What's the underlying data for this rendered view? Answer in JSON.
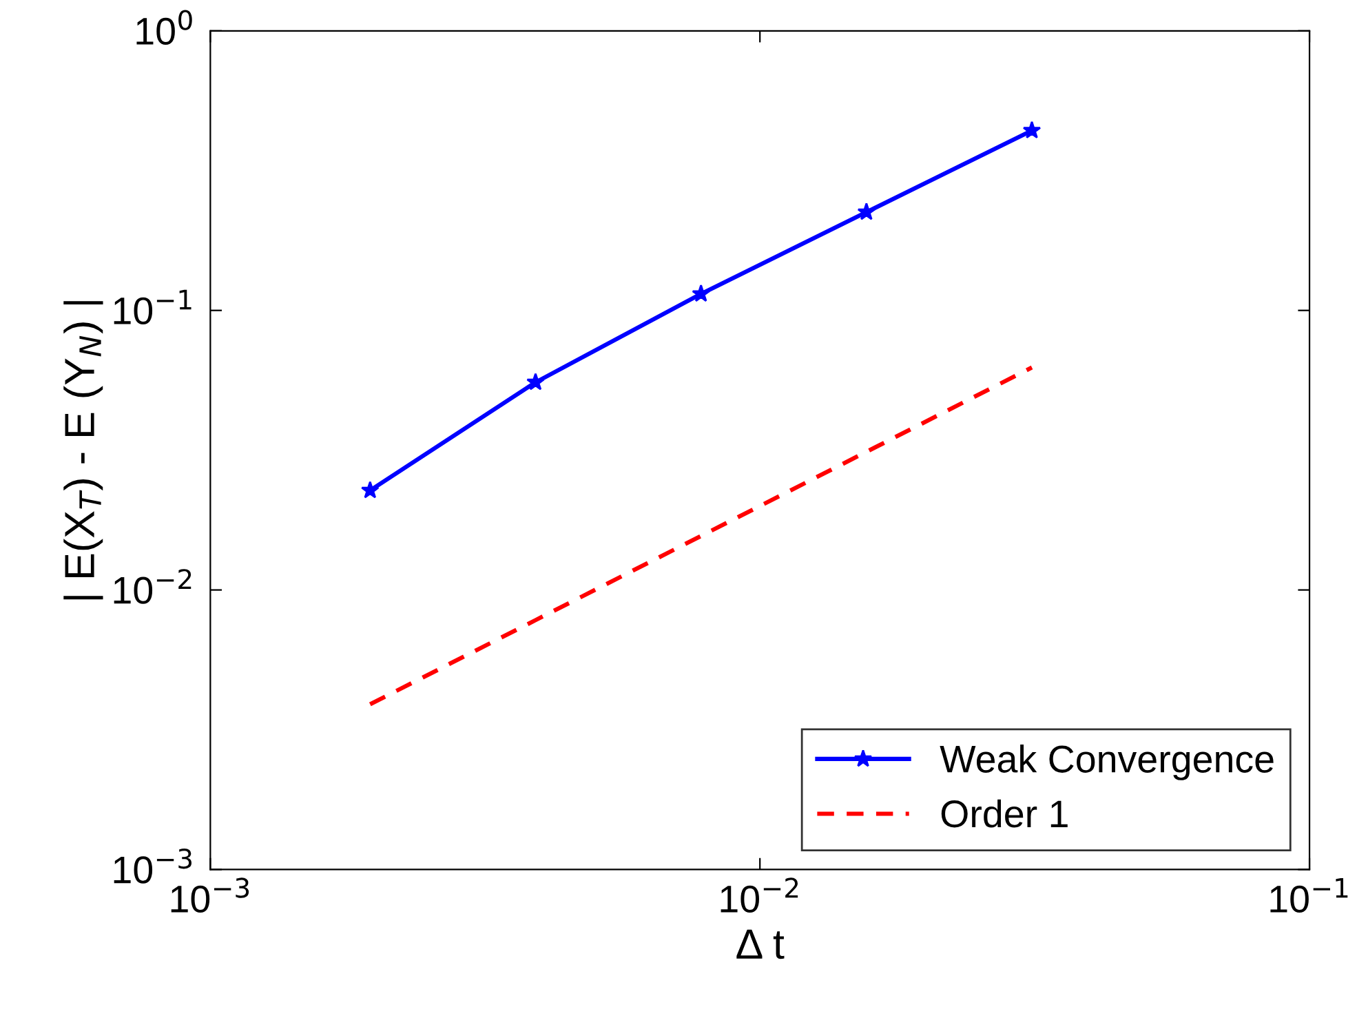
{
  "chart_data": {
    "type": "line",
    "xlabel": "Δ t",
    "ylabel": "| E(X$_{T}$) - E (Y$_{N}$) |",
    "log": "xy",
    "x": [
      0.001953,
      0.003906,
      0.0078125,
      0.015625,
      0.03125
    ],
    "series": [
      {
        "name": "Weak Convergence",
        "color": "#0000ff",
        "values": [
          0.0227,
          0.0553,
          0.1146,
          0.2247,
          0.44
        ],
        "marker": "star",
        "line_style": "solid"
      },
      {
        "name": "Order 1",
        "color": "#ff0000",
        "values": [
          0.0039,
          0.0078,
          0.0156,
          0.0312,
          0.0625
        ],
        "marker": "none",
        "line_style": "dashed"
      }
    ],
    "xlim": [
      0.001,
      0.1
    ],
    "ylim": [
      0.001,
      1
    ],
    "xticks": [
      {
        "value": 0.001,
        "label": "10$^{−3}$"
      },
      {
        "value": 0.01,
        "label": "10$^{−2}$"
      },
      {
        "value": 0.1,
        "label": "10$^{−1}$"
      }
    ],
    "yticks": [
      {
        "value": 0.001,
        "label": "10$^{−3}$"
      },
      {
        "value": 0.01,
        "label": "10$^{−2}$"
      },
      {
        "value": 0.1,
        "label": "10$^{−1}$"
      },
      {
        "value": 1,
        "label": "10$^{0}$"
      }
    ],
    "grid": false,
    "legend": "bottom right"
  }
}
